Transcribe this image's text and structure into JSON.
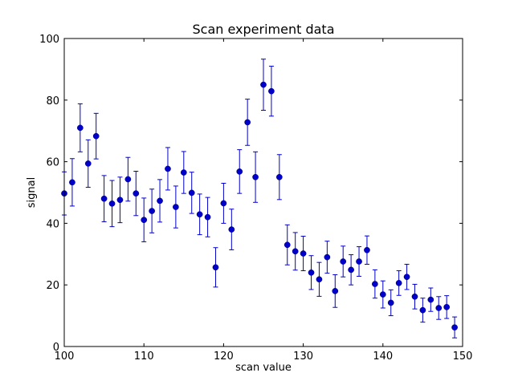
{
  "chart_data": {
    "type": "scatter",
    "title": "Scan experiment data",
    "xlabel": "scan value",
    "ylabel": "signal",
    "xlim": [
      100,
      150
    ],
    "ylim": [
      0,
      100
    ],
    "xticks": [
      100,
      110,
      120,
      130,
      140,
      150
    ],
    "yticks": [
      0,
      20,
      40,
      60,
      80,
      100
    ],
    "grid": false,
    "colors": {
      "marker": "#0000cc",
      "errorbar": "#0000cc",
      "axes": "#000000"
    },
    "series": [
      {
        "x": [
          100,
          101,
          102,
          103,
          104,
          105,
          106,
          107,
          108,
          109,
          110,
          111,
          112,
          113,
          114,
          115,
          116,
          117,
          118,
          119,
          120,
          121,
          122,
          123,
          124,
          125,
          126,
          127,
          128,
          129,
          130,
          131,
          132,
          133,
          134,
          135,
          136,
          137,
          138,
          139,
          140,
          141,
          142,
          143,
          144,
          145,
          146,
          147,
          148,
          149
        ],
        "y": [
          49.7,
          53.3,
          71.0,
          59.4,
          68.3,
          48.0,
          46.4,
          47.6,
          54.3,
          49.7,
          41.1,
          44.0,
          47.3,
          57.7,
          45.3,
          56.5,
          49.9,
          42.9,
          42.0,
          25.7,
          46.5,
          38.0,
          56.8,
          72.8,
          55.0,
          85.0,
          82.9,
          55.0,
          33.0,
          30.9,
          30.2,
          24.0,
          21.8,
          29.0,
          18.0,
          27.6,
          24.9,
          27.6,
          31.3,
          20.3,
          16.9,
          14.2,
          20.6,
          22.6,
          16.2,
          11.8,
          15.2,
          12.5,
          12.8,
          6.2
        ],
        "yerr": [
          7.0,
          7.7,
          7.8,
          7.7,
          7.4,
          7.5,
          7.5,
          7.4,
          7.1,
          7.2,
          7.1,
          7.1,
          6.9,
          6.9,
          6.8,
          6.8,
          6.7,
          6.6,
          6.4,
          6.4,
          6.5,
          6.6,
          7.1,
          7.5,
          8.2,
          8.3,
          8.1,
          7.3,
          6.5,
          6.1,
          5.6,
          5.5,
          5.5,
          5.2,
          5.3,
          5.0,
          4.9,
          4.8,
          4.6,
          4.6,
          4.4,
          4.2,
          4.0,
          4.1,
          4.0,
          3.9,
          3.8,
          3.7,
          3.7,
          3.4
        ]
      }
    ]
  }
}
